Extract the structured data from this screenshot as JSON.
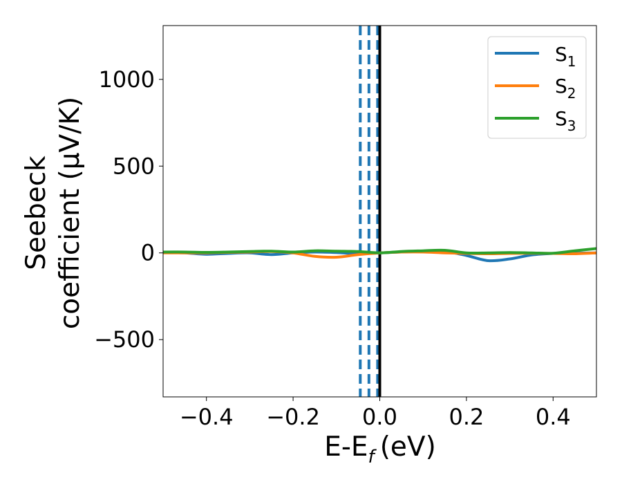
{
  "chart_data": {
    "type": "line",
    "xlabel": "E-E",
    "xlabel_sub": "f",
    "xlabel_unit": "(eV)",
    "ylabel_line1": "Seebeck",
    "ylabel_line2": "coefficient  (μV/K)",
    "xlim": [
      -0.5,
      0.5
    ],
    "ylim": [
      -830,
      1310
    ],
    "xticks": [
      -0.4,
      -0.2,
      0.0,
      0.2,
      0.4
    ],
    "xtick_labels": [
      "−0.4",
      "−0.2",
      "0.0",
      "0.2",
      "0.4"
    ],
    "yticks": [
      -500,
      0,
      500,
      1000
    ],
    "ytick_labels": [
      "−500",
      "0",
      "500",
      "1000"
    ],
    "grid": false,
    "legend_position": "upper right",
    "series": [
      {
        "name": "S",
        "name_sub": "1",
        "color": "#1f77b4",
        "x": [
          -0.5,
          -0.45,
          -0.4,
          -0.35,
          -0.3,
          -0.25,
          -0.2,
          -0.15,
          -0.1,
          -0.05,
          0.0,
          0.05,
          0.1,
          0.15,
          0.2,
          0.25,
          0.3,
          0.35,
          0.4,
          0.45,
          0.5
        ],
        "y": [
          3,
          0,
          -8,
          -3,
          0,
          -10,
          0,
          5,
          2,
          -5,
          0,
          5,
          8,
          8,
          -15,
          -45,
          -35,
          -12,
          -3,
          -2,
          0
        ]
      },
      {
        "name": "S",
        "name_sub": "2",
        "color": "#ff7f0e",
        "x": [
          -0.5,
          -0.45,
          -0.4,
          -0.35,
          -0.3,
          -0.25,
          -0.2,
          -0.15,
          -0.1,
          -0.05,
          0.0,
          0.05,
          0.1,
          0.15,
          0.2,
          0.25,
          0.3,
          0.35,
          0.4,
          0.45,
          0.5
        ],
        "y": [
          0,
          0,
          0,
          3,
          5,
          8,
          0,
          -20,
          -25,
          -10,
          0,
          5,
          5,
          0,
          -3,
          -5,
          -3,
          -2,
          -3,
          -5,
          0
        ]
      },
      {
        "name": "S",
        "name_sub": "3",
        "color": "#2ca02c",
        "x": [
          -0.5,
          -0.45,
          -0.4,
          -0.35,
          -0.3,
          -0.25,
          -0.2,
          -0.15,
          -0.1,
          -0.05,
          0.0,
          0.05,
          0.1,
          0.15,
          0.2,
          0.25,
          0.3,
          0.35,
          0.4,
          0.45,
          0.5
        ],
        "y": [
          5,
          5,
          3,
          5,
          8,
          10,
          5,
          12,
          10,
          8,
          0,
          8,
          12,
          15,
          0,
          0,
          2,
          0,
          -2,
          12,
          25
        ]
      }
    ],
    "vlines": [
      {
        "x": -0.045,
        "style": "dashed",
        "color": "#1f77b4"
      },
      {
        "x": -0.025,
        "style": "dashed",
        "color": "#1f77b4"
      },
      {
        "x": -0.005,
        "style": "dashed",
        "color": "#1f77b4"
      },
      {
        "x": 0.0,
        "style": "solid",
        "color": "#000000"
      }
    ]
  }
}
